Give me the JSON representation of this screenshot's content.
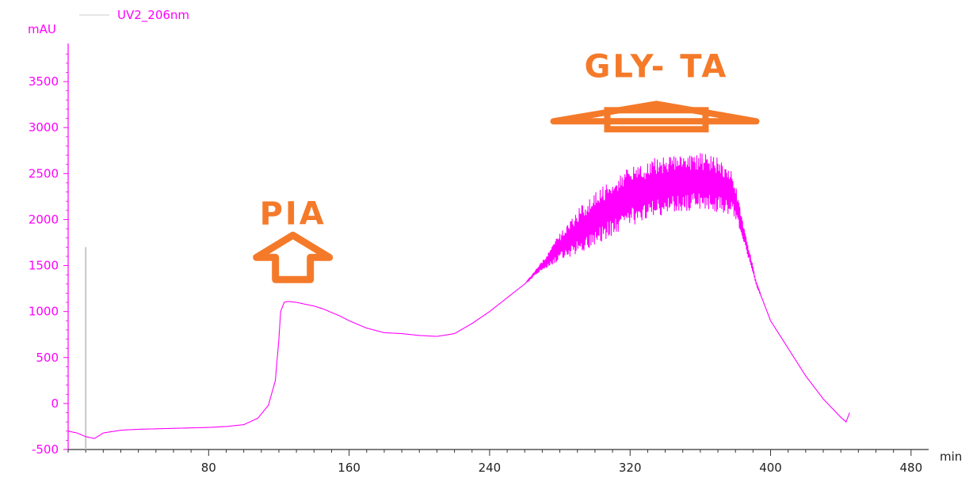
{
  "chart_data": {
    "type": "line",
    "y_unit": "mAU",
    "x_unit": "min",
    "ylim": [
      -500,
      4000
    ],
    "xlim": [
      0,
      490
    ],
    "y_ticks": [
      -500,
      0,
      500,
      1000,
      1500,
      2000,
      2500,
      3000,
      3500
    ],
    "x_ticks": [
      80,
      160,
      240,
      320,
      400,
      480
    ],
    "grid": false,
    "series": [
      {
        "name": "UV2_206nm",
        "color": "#ff00ff",
        "x": [
          0,
          5,
          10,
          15,
          20,
          30,
          40,
          60,
          70,
          80,
          90,
          100,
          108,
          114,
          118,
          120,
          121,
          123,
          125,
          130,
          135,
          140,
          145,
          150,
          155,
          160,
          165,
          170,
          180,
          190,
          200,
          210,
          220,
          230,
          240,
          250,
          260,
          270,
          280,
          290,
          300,
          310,
          320,
          330,
          340,
          350,
          360,
          370,
          378,
          380,
          384,
          388,
          392,
          396,
          400,
          410,
          420,
          430,
          440,
          443,
          445
        ],
        "y": [
          -300,
          -320,
          -360,
          -380,
          -320,
          -290,
          -280,
          -270,
          -265,
          -260,
          -250,
          -230,
          -160,
          -20,
          250,
          700,
          1000,
          1100,
          1110,
          1100,
          1080,
          1060,
          1030,
          990,
          950,
          900,
          860,
          820,
          770,
          760,
          740,
          730,
          760,
          870,
          1000,
          1150,
          1300,
          1500,
          1700,
          1870,
          2000,
          2150,
          2250,
          2320,
          2380,
          2400,
          2420,
          2380,
          2300,
          2200,
          1900,
          1600,
          1300,
          1100,
          900,
          600,
          300,
          50,
          -150,
          -200,
          -100
        ],
        "noise_amplitude": [
          0,
          0,
          0,
          0,
          0,
          0,
          0,
          0,
          0,
          0,
          0,
          0,
          0,
          0,
          0,
          0,
          0,
          0,
          0,
          0,
          0,
          0,
          0,
          0,
          0,
          0,
          0,
          0,
          0,
          0,
          0,
          0,
          0,
          0,
          0,
          0,
          0,
          50,
          150,
          240,
          290,
          320,
          320,
          330,
          320,
          310,
          310,
          300,
          250,
          200,
          120,
          60,
          20,
          0,
          0,
          0,
          0,
          0,
          0,
          0,
          0
        ]
      }
    ],
    "annotations": [
      {
        "text": "PIA",
        "x": 128,
        "y": 1950,
        "arrow": "up"
      },
      {
        "text": "GLY- TA",
        "x": 335,
        "y": 3550,
        "arrow": "bracket"
      }
    ],
    "marker_line": {
      "x": 10,
      "y_top": 1700,
      "y_bottom": -500
    }
  }
}
